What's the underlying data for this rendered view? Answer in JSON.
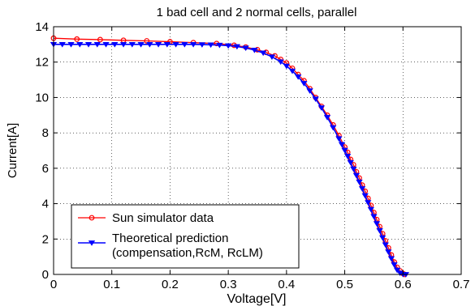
{
  "chart_data": {
    "type": "line",
    "title": "1 bad cell and 2 normal cells, parallel",
    "xlabel": "Voltage[V]",
    "ylabel": "Current[A]",
    "xlim": [
      0,
      0.7
    ],
    "ylim": [
      0,
      14
    ],
    "xticks": [
      "0",
      "0.1",
      "0.2",
      "0.3",
      "0.4",
      "0.5",
      "0.6",
      "0.7"
    ],
    "yticks": [
      "0",
      "2",
      "4",
      "6",
      "8",
      "10",
      "12",
      "14"
    ],
    "grid": true,
    "legend_position": "bottom-left",
    "series": [
      {
        "name": "Sun simulator data",
        "color": "#ff0000",
        "marker": "circle",
        "x": [
          0,
          0.04,
          0.08,
          0.12,
          0.16,
          0.2,
          0.24,
          0.28,
          0.31,
          0.33,
          0.35,
          0.365,
          0.38,
          0.39,
          0.4,
          0.41,
          0.42,
          0.43,
          0.44,
          0.45,
          0.46,
          0.47,
          0.48,
          0.49,
          0.5,
          0.505,
          0.51,
          0.515,
          0.52,
          0.525,
          0.53,
          0.535,
          0.54,
          0.545,
          0.55,
          0.555,
          0.56,
          0.565,
          0.57,
          0.575,
          0.58,
          0.585,
          0.59,
          0.595,
          0.6,
          0.603
        ],
        "y": [
          13.35,
          13.3,
          13.27,
          13.23,
          13.2,
          13.15,
          13.1,
          13.05,
          12.95,
          12.85,
          12.7,
          12.55,
          12.35,
          12.15,
          11.95,
          11.65,
          11.3,
          10.95,
          10.5,
          10.0,
          9.5,
          9.0,
          8.45,
          7.85,
          7.2,
          6.9,
          6.5,
          6.2,
          5.8,
          5.45,
          5.05,
          4.7,
          4.3,
          3.9,
          3.5,
          3.1,
          2.7,
          2.3,
          1.9,
          1.5,
          1.1,
          0.7,
          0.4,
          0.2,
          0.05,
          0.0
        ]
      },
      {
        "name": "Theoretical prediction (compensation,RcM, RcLM)",
        "legend_lines": [
          "Theoretical prediction",
          "(compensation,RcM, RcLM)"
        ],
        "color": "#0000ff",
        "marker": "triangle-down",
        "x": [
          0,
          0.015,
          0.03,
          0.045,
          0.06,
          0.075,
          0.09,
          0.105,
          0.12,
          0.135,
          0.15,
          0.165,
          0.18,
          0.195,
          0.21,
          0.225,
          0.24,
          0.255,
          0.27,
          0.285,
          0.3,
          0.315,
          0.33,
          0.345,
          0.36,
          0.375,
          0.39,
          0.4,
          0.41,
          0.42,
          0.43,
          0.44,
          0.45,
          0.46,
          0.47,
          0.48,
          0.49,
          0.495,
          0.5,
          0.505,
          0.51,
          0.515,
          0.52,
          0.525,
          0.53,
          0.535,
          0.54,
          0.545,
          0.55,
          0.555,
          0.56,
          0.565,
          0.57,
          0.575,
          0.58,
          0.585,
          0.59,
          0.595,
          0.6,
          0.605
        ],
        "y": [
          13.0,
          13.0,
          13.0,
          13.0,
          13.0,
          13.0,
          13.0,
          13.0,
          13.0,
          13.0,
          13.0,
          13.0,
          13.0,
          13.0,
          13.0,
          13.0,
          13.0,
          12.99,
          12.98,
          12.96,
          12.93,
          12.88,
          12.8,
          12.68,
          12.52,
          12.3,
          12.02,
          11.78,
          11.5,
          11.17,
          10.8,
          10.38,
          9.92,
          9.42,
          8.88,
          8.3,
          7.68,
          7.35,
          7.02,
          6.68,
          6.33,
          5.97,
          5.6,
          5.23,
          4.85,
          4.46,
          4.07,
          3.68,
          3.28,
          2.88,
          2.48,
          2.08,
          1.68,
          1.28,
          0.9,
          0.55,
          0.25,
          0.08,
          0.01,
          0.0
        ]
      }
    ]
  }
}
